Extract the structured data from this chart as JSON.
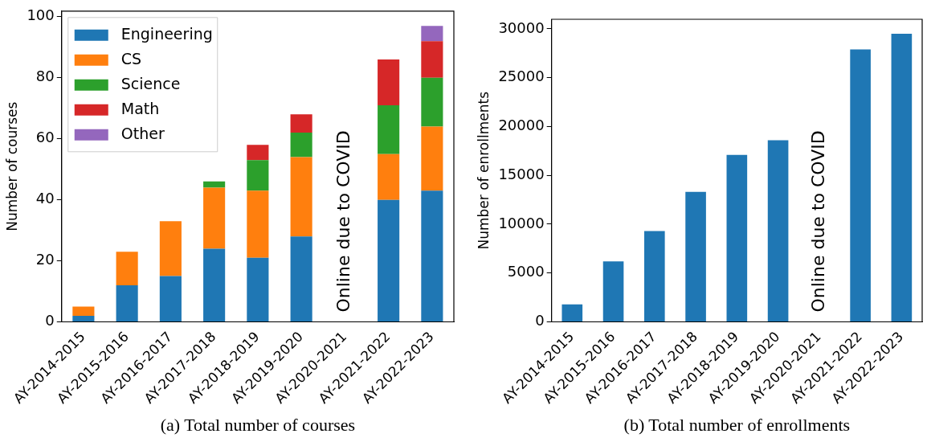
{
  "chart_data": [
    {
      "type": "bar",
      "stacked": true,
      "ylabel": "Number of courses",
      "categories": [
        "AY-2014-2015",
        "AY-2015-2016",
        "AY-2016-2017",
        "AY-2017-2018",
        "AY-2018-2019",
        "AY-2019-2020",
        "AY-2020-2021",
        "AY-2021-2022",
        "AY-2022-2023"
      ],
      "series": [
        {
          "name": "Engineering",
          "color": "#1f77b4",
          "values": [
            2,
            12,
            15,
            24,
            21,
            28,
            null,
            40,
            43
          ]
        },
        {
          "name": "CS",
          "color": "#ff7f0e",
          "values": [
            3,
            11,
            18,
            20,
            22,
            26,
            null,
            15,
            21
          ]
        },
        {
          "name": "Science",
          "color": "#2ca02c",
          "values": [
            0,
            0,
            0,
            2,
            10,
            8,
            null,
            16,
            16
          ]
        },
        {
          "name": "Math",
          "color": "#d62728",
          "values": [
            0,
            0,
            0,
            0,
            5,
            6,
            null,
            15,
            12
          ]
        },
        {
          "name": "Other",
          "color": "#9467bd",
          "values": [
            0,
            0,
            0,
            0,
            0,
            0,
            null,
            0,
            5
          ]
        }
      ],
      "ylim": [
        0,
        101.85
      ],
      "yticks": [
        0,
        20,
        40,
        60,
        80,
        100
      ],
      "grid": false,
      "legend": "top left",
      "annotations": [
        "Online due to COVID",
        "(a) Total number of courses"
      ]
    },
    {
      "type": "bar",
      "ylabel": "Number of enrollments",
      "categories": [
        "AY-2014-2015",
        "AY-2015-2016",
        "AY-2016-2017",
        "AY-2017-2018",
        "AY-2018-2019",
        "AY-2019-2020",
        "AY-2020-2021",
        "AY-2021-2022",
        "AY-2022-2023"
      ],
      "series": [
        {
          "color": "#1f77b4",
          "values": [
            1800,
            6200,
            9300,
            13300,
            17100,
            18600,
            null,
            27900,
            29500
          ]
        }
      ],
      "ylim": [
        0,
        30975
      ],
      "yticks": [
        0,
        5000,
        10000,
        15000,
        20000,
        25000,
        30000
      ],
      "grid": false,
      "legend": false,
      "annotations": [
        "Online due to COVID",
        "(b) Total number of enrollments"
      ]
    }
  ]
}
